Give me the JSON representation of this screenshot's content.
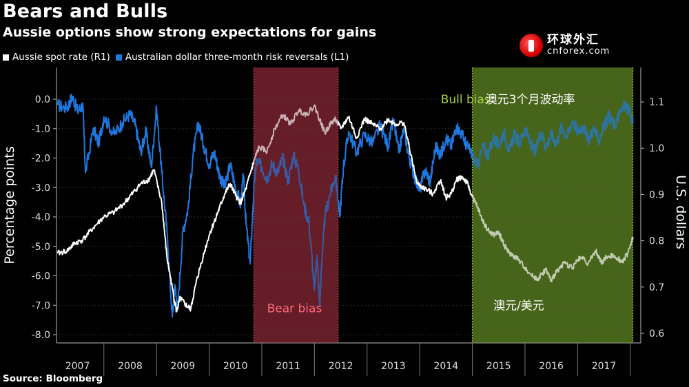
{
  "title": "Bears and Bulls",
  "subtitle": "Aussie options show strong expectations for gains",
  "source": "Source: Bloomberg",
  "logo": {
    "cn": "环球外汇",
    "en": "cnforex.com"
  },
  "colors": {
    "spot": "#ffffff",
    "reversal": "#1f78e0",
    "bear_region": "#6b1f2a",
    "bull_region": "#4a6a1c",
    "bull_label": "#a8d040",
    "bear_label": "#ff6a7a"
  },
  "chart_data": {
    "type": "line",
    "legend": [
      {
        "name": "Aussie spot rate (R1)",
        "color": "#ffffff"
      },
      {
        "name": "Australian dollar three-month risk reversals (L1)",
        "color": "#1f78e0"
      }
    ],
    "x_labels": [
      "2007",
      "2008",
      "2009",
      "2010",
      "2011",
      "2012",
      "2013",
      "2014",
      "2015",
      "2016",
      "2017"
    ],
    "xlim": [
      2006.6,
      2017.7
    ],
    "left_axis": {
      "label": "Percentage points",
      "ticks": [
        "0.0",
        "-1.0",
        "-2.0",
        "-3.0",
        "-4.0",
        "-5.0",
        "-6.0",
        "-7.0",
        "-8.0"
      ],
      "ylim": [
        -8.0,
        0.0
      ]
    },
    "right_axis": {
      "label": "U.S. dollars",
      "ticks": [
        "1.1",
        "1.0",
        "0.9",
        "0.8",
        "0.7",
        "0.6"
      ],
      "ylim": [
        0.6,
        1.1
      ]
    },
    "regions": [
      {
        "name": "Bear bias",
        "start": 2010.35,
        "end": 2011.95,
        "color": "#6b1f2a"
      },
      {
        "name": "Bull bias",
        "start": 2014.5,
        "end": 2017.55,
        "color": "#4a6a1c"
      }
    ],
    "annotations": [
      {
        "text": "Bear bias",
        "x": 2010.6,
        "y_left": -7.1,
        "color": "#ff6a7a"
      },
      {
        "text": "Bull bias",
        "x": 2013.9,
        "y_left": 0.0,
        "color": "#a8d040"
      },
      {
        "text": "澳元3个月波动率",
        "x": 2014.75,
        "y_left": 0.0,
        "color": "#ffffff"
      },
      {
        "text": "澳元/美元",
        "x": 2014.9,
        "y_left": -7.0,
        "color": "#ffffff"
      }
    ],
    "series": [
      {
        "name": "Aussie spot rate (R1)",
        "axis": "right",
        "color": "#ffffff",
        "points": [
          [
            2006.62,
            0.773
          ],
          [
            2006.8,
            0.778
          ],
          [
            2006.95,
            0.795
          ],
          [
            2007.1,
            0.802
          ],
          [
            2007.3,
            0.828
          ],
          [
            2007.5,
            0.852
          ],
          [
            2007.7,
            0.862
          ],
          [
            2007.9,
            0.883
          ],
          [
            2008.05,
            0.903
          ],
          [
            2008.2,
            0.923
          ],
          [
            2008.35,
            0.932
          ],
          [
            2008.45,
            0.953
          ],
          [
            2008.6,
            0.882
          ],
          [
            2008.7,
            0.762
          ],
          [
            2008.8,
            0.698
          ],
          [
            2008.88,
            0.647
          ],
          [
            2008.95,
            0.676
          ],
          [
            2009.05,
            0.662
          ],
          [
            2009.15,
            0.652
          ],
          [
            2009.25,
            0.708
          ],
          [
            2009.35,
            0.752
          ],
          [
            2009.5,
            0.812
          ],
          [
            2009.6,
            0.842
          ],
          [
            2009.7,
            0.872
          ],
          [
            2009.8,
            0.902
          ],
          [
            2009.9,
            0.923
          ],
          [
            2010.0,
            0.898
          ],
          [
            2010.1,
            0.882
          ],
          [
            2010.2,
            0.912
          ],
          [
            2010.3,
            0.953
          ],
          [
            2010.38,
            0.982
          ],
          [
            2010.45,
            1.002
          ],
          [
            2010.6,
            0.993
          ],
          [
            2010.75,
            1.043
          ],
          [
            2010.9,
            1.072
          ],
          [
            2011.05,
            1.052
          ],
          [
            2011.2,
            1.082
          ],
          [
            2011.35,
            1.073
          ],
          [
            2011.5,
            1.092
          ],
          [
            2011.6,
            1.062
          ],
          [
            2011.7,
            1.033
          ],
          [
            2011.8,
            1.052
          ],
          [
            2011.9,
            1.063
          ],
          [
            2012.0,
            1.042
          ],
          [
            2012.15,
            1.068
          ],
          [
            2012.3,
            1.022
          ],
          [
            2012.45,
            1.063
          ],
          [
            2012.6,
            1.052
          ],
          [
            2012.75,
            1.042
          ],
          [
            2012.9,
            1.062
          ],
          [
            2013.05,
            1.052
          ],
          [
            2013.2,
            1.055
          ],
          [
            2013.3,
            1.003
          ],
          [
            2013.45,
            0.923
          ],
          [
            2013.6,
            0.912
          ],
          [
            2013.75,
            0.902
          ],
          [
            2013.9,
            0.932
          ],
          [
            2014.0,
            0.892
          ],
          [
            2014.1,
            0.902
          ],
          [
            2014.2,
            0.932
          ],
          [
            2014.3,
            0.938
          ],
          [
            2014.4,
            0.925
          ],
          [
            2014.5,
            0.895
          ],
          [
            2014.6,
            0.872
          ],
          [
            2014.7,
            0.842
          ],
          [
            2014.8,
            0.822
          ],
          [
            2014.9,
            0.812
          ],
          [
            2015.0,
            0.818
          ],
          [
            2015.1,
            0.792
          ],
          [
            2015.2,
            0.773
          ],
          [
            2015.35,
            0.762
          ],
          [
            2015.5,
            0.742
          ],
          [
            2015.65,
            0.722
          ],
          [
            2015.75,
            0.718
          ],
          [
            2015.9,
            0.738
          ],
          [
            2016.0,
            0.712
          ],
          [
            2016.1,
            0.735
          ],
          [
            2016.25,
            0.752
          ],
          [
            2016.4,
            0.742
          ],
          [
            2016.55,
            0.765
          ],
          [
            2016.7,
            0.752
          ],
          [
            2016.85,
            0.778
          ],
          [
            2016.95,
            0.752
          ],
          [
            2017.05,
            0.765
          ],
          [
            2017.2,
            0.768
          ],
          [
            2017.35,
            0.755
          ],
          [
            2017.45,
            0.772
          ],
          [
            2017.55,
            0.808
          ]
        ]
      },
      {
        "name": "Australian dollar three-month risk reversals (L1)",
        "axis": "left",
        "color": "#1f78e0",
        "points": [
          [
            2006.62,
            -0.2
          ],
          [
            2006.8,
            -0.3
          ],
          [
            2006.9,
            0.1
          ],
          [
            2007.0,
            -0.4
          ],
          [
            2007.1,
            -0.2
          ],
          [
            2007.15,
            -2.5
          ],
          [
            2007.3,
            -1.0
          ],
          [
            2007.4,
            -1.5
          ],
          [
            2007.5,
            -0.6
          ],
          [
            2007.7,
            -1.2
          ],
          [
            2007.85,
            -0.8
          ],
          [
            2008.0,
            -0.5
          ],
          [
            2008.1,
            -0.9
          ],
          [
            2008.2,
            -1.8
          ],
          [
            2008.3,
            -1.1
          ],
          [
            2008.4,
            -2.3
          ],
          [
            2008.5,
            -0.3
          ],
          [
            2008.6,
            -2.5
          ],
          [
            2008.7,
            -4.5
          ],
          [
            2008.8,
            -7.4
          ],
          [
            2008.85,
            -6.3
          ],
          [
            2008.9,
            -7.2
          ],
          [
            2009.0,
            -4.5
          ],
          [
            2009.1,
            -3.7
          ],
          [
            2009.2,
            -1.8
          ],
          [
            2009.3,
            -0.8
          ],
          [
            2009.4,
            -1.6
          ],
          [
            2009.5,
            -2.2
          ],
          [
            2009.6,
            -1.8
          ],
          [
            2009.7,
            -2.6
          ],
          [
            2009.8,
            -3.0
          ],
          [
            2009.9,
            -2.2
          ],
          [
            2010.0,
            -3.0
          ],
          [
            2010.1,
            -3.6
          ],
          [
            2010.15,
            -2.6
          ],
          [
            2010.2,
            -4.2
          ],
          [
            2010.28,
            -5.6
          ],
          [
            2010.35,
            -3.0
          ],
          [
            2010.4,
            -2.1
          ],
          [
            2010.5,
            -2.3
          ],
          [
            2010.6,
            -2.7
          ],
          [
            2010.7,
            -2.2
          ],
          [
            2010.8,
            -2.5
          ],
          [
            2010.9,
            -2.0
          ],
          [
            2011.0,
            -2.8
          ],
          [
            2011.1,
            -1.9
          ],
          [
            2011.2,
            -2.4
          ],
          [
            2011.3,
            -3.6
          ],
          [
            2011.4,
            -4.2
          ],
          [
            2011.5,
            -6.5
          ],
          [
            2011.55,
            -5.3
          ],
          [
            2011.6,
            -7.0
          ],
          [
            2011.65,
            -5.2
          ],
          [
            2011.7,
            -4.0
          ],
          [
            2011.8,
            -3.2
          ],
          [
            2011.9,
            -2.6
          ],
          [
            2011.98,
            -4.0
          ],
          [
            2012.05,
            -2.3
          ],
          [
            2012.15,
            -1.1
          ],
          [
            2012.3,
            -1.8
          ],
          [
            2012.45,
            -1.2
          ],
          [
            2012.6,
            -1.5
          ],
          [
            2012.75,
            -0.9
          ],
          [
            2012.9,
            -1.6
          ],
          [
            2013.0,
            -0.7
          ],
          [
            2013.1,
            -1.8
          ],
          [
            2013.2,
            -1.0
          ],
          [
            2013.3,
            -2.0
          ],
          [
            2013.4,
            -2.6
          ],
          [
            2013.5,
            -3.1
          ],
          [
            2013.6,
            -2.4
          ],
          [
            2013.7,
            -2.8
          ],
          [
            2013.8,
            -1.6
          ],
          [
            2013.9,
            -1.9
          ],
          [
            2014.0,
            -1.3
          ],
          [
            2014.1,
            -1.6
          ],
          [
            2014.2,
            -0.9
          ],
          [
            2014.3,
            -1.2
          ],
          [
            2014.4,
            -1.6
          ],
          [
            2014.5,
            -1.9
          ],
          [
            2014.6,
            -2.3
          ],
          [
            2014.7,
            -1.6
          ],
          [
            2014.8,
            -1.9
          ],
          [
            2014.9,
            -1.3
          ],
          [
            2015.0,
            -1.6
          ],
          [
            2015.1,
            -1.1
          ],
          [
            2015.2,
            -1.8
          ],
          [
            2015.3,
            -1.2
          ],
          [
            2015.4,
            -1.5
          ],
          [
            2015.5,
            -1.0
          ],
          [
            2015.6,
            -1.5
          ],
          [
            2015.7,
            -1.8
          ],
          [
            2015.8,
            -1.1
          ],
          [
            2015.9,
            -1.6
          ],
          [
            2016.0,
            -1.2
          ],
          [
            2016.1,
            -1.5
          ],
          [
            2016.2,
            -0.9
          ],
          [
            2016.3,
            -1.3
          ],
          [
            2016.4,
            -0.7
          ],
          [
            2016.5,
            -1.1
          ],
          [
            2016.6,
            -0.9
          ],
          [
            2016.7,
            -1.4
          ],
          [
            2016.8,
            -1.0
          ],
          [
            2016.9,
            -1.4
          ],
          [
            2017.0,
            -0.9
          ],
          [
            2017.1,
            -0.6
          ],
          [
            2017.2,
            -0.9
          ],
          [
            2017.3,
            -0.5
          ],
          [
            2017.4,
            -0.2
          ],
          [
            2017.5,
            -0.5
          ],
          [
            2017.55,
            -0.8
          ]
        ]
      }
    ]
  }
}
